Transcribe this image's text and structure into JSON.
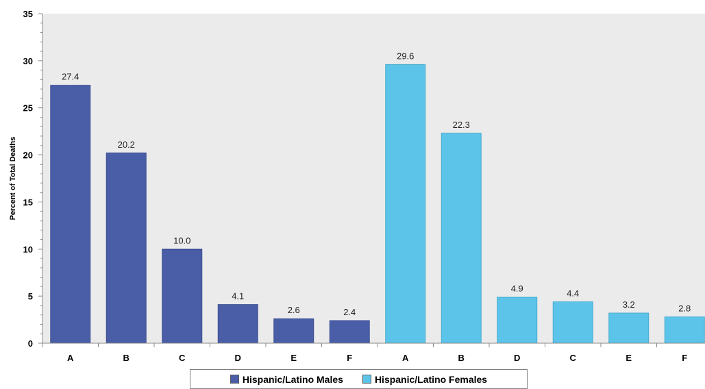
{
  "chart_data": {
    "type": "bar",
    "ylabel": "Percent of Total Deaths",
    "ylim": [
      0,
      35
    ],
    "yticks": [
      0,
      5,
      10,
      15,
      20,
      25,
      30,
      35
    ],
    "grid": false,
    "legend_position": "bottom",
    "series": [
      {
        "name": "Hispanic/Latino Males",
        "color": "#4a5ea8",
        "categories": [
          "A",
          "B",
          "C",
          "D",
          "E",
          "F"
        ],
        "values": [
          27.4,
          20.2,
          10.0,
          4.1,
          2.6,
          2.4
        ],
        "labels": [
          "27.4",
          "20.2",
          "10.0",
          "4.1",
          "2.6",
          "2.4"
        ]
      },
      {
        "name": "Hispanic/Latino Females",
        "color": "#5bc4e8",
        "categories": [
          "A",
          "B",
          "D",
          "C",
          "E",
          "F"
        ],
        "values": [
          29.6,
          22.3,
          4.9,
          4.4,
          3.2,
          2.8
        ],
        "labels": [
          "29.6",
          "22.3",
          "4.9",
          "4.4",
          "3.2",
          "2.8"
        ]
      }
    ]
  }
}
